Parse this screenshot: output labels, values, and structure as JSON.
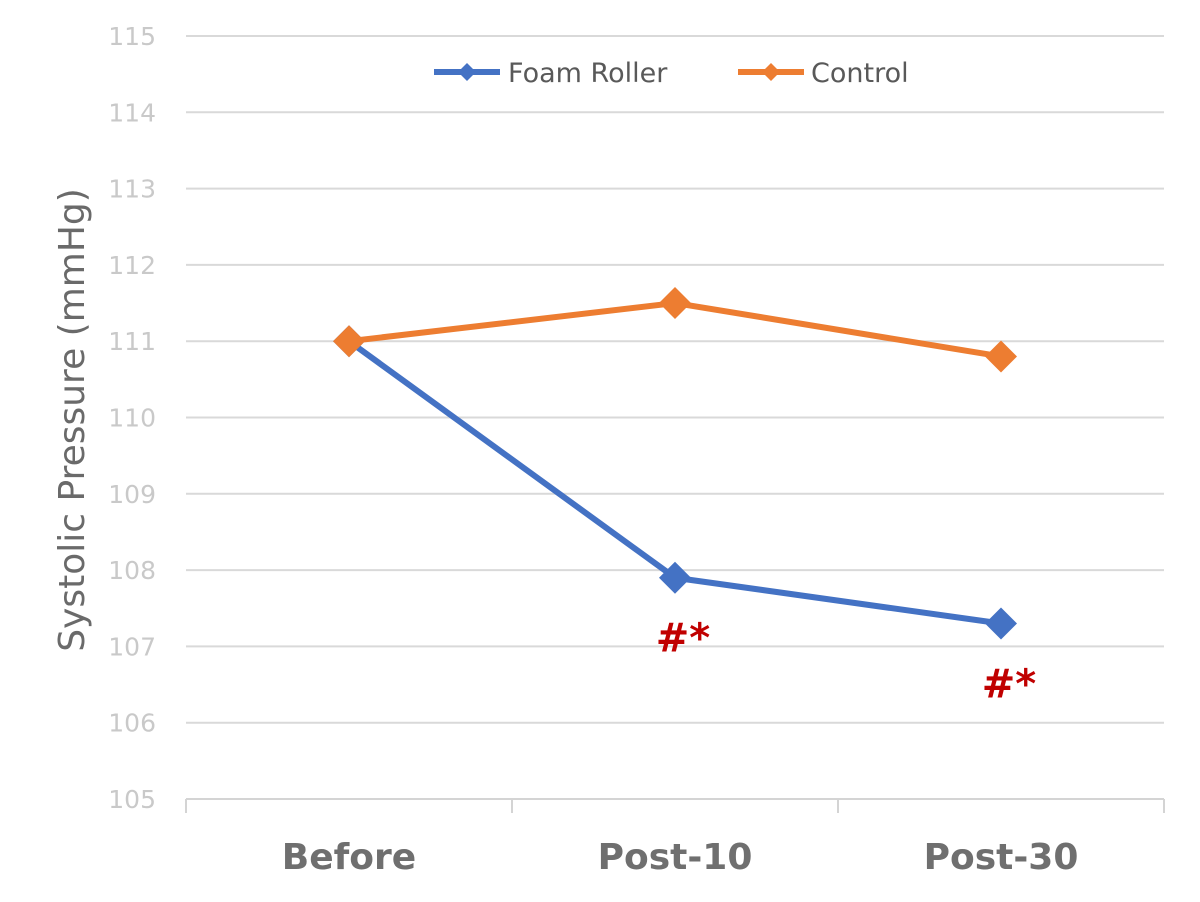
{
  "chart_data": {
    "type": "line",
    "categories": [
      "Before",
      "Post-10",
      "Post-30"
    ],
    "series": [
      {
        "name": "Foam Roller",
        "values": [
          111.0,
          107.9,
          107.3
        ],
        "color": "#4472c4"
      },
      {
        "name": "Control",
        "values": [
          111.0,
          111.5,
          110.8
        ],
        "color": "#ed7d31"
      }
    ],
    "ylabel": "Systolic Pressure (mmHg)",
    "ylim": [
      105,
      115
    ],
    "yticks": [
      "105",
      "106",
      "107",
      "108",
      "109",
      "110",
      "111",
      "112",
      "113",
      "114",
      "115"
    ],
    "grid": true,
    "legend_position": "top-center",
    "annotations": [
      {
        "series": "Foam Roller",
        "category": "Post-10",
        "text": "#*",
        "color": "#c00000"
      },
      {
        "series": "Foam Roller",
        "category": "Post-30",
        "text": "#*",
        "color": "#c00000"
      }
    ]
  }
}
